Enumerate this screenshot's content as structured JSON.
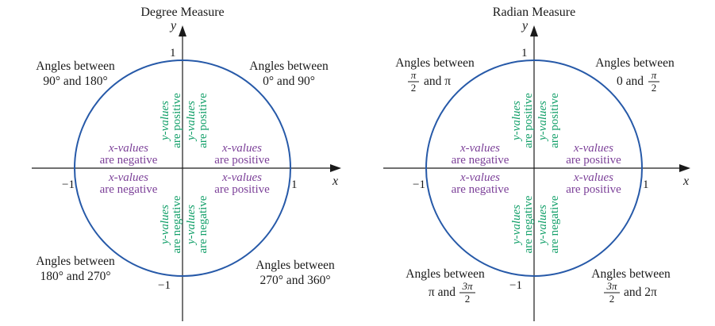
{
  "diagrams": [
    {
      "title": "Degree Measure",
      "axis_x": "x",
      "axis_y": "y",
      "ticks": {
        "pos_y": "1",
        "neg_y": "−1",
        "pos_x": "1",
        "neg_x": "−1"
      },
      "quadrants": {
        "q1": {
          "line1": "Angles between",
          "line2": "0° and 90°"
        },
        "q2": {
          "line1": "Angles between",
          "line2": "90° and 180°"
        },
        "q3": {
          "line1": "Angles between",
          "line2": "180° and 270°"
        },
        "q4": {
          "line1": "Angles between",
          "line2": "270° and 360°"
        }
      }
    },
    {
      "title": "Radian Measure",
      "axis_x": "x",
      "axis_y": "y",
      "ticks": {
        "pos_y": "1",
        "neg_y": "−1",
        "pos_x": "1",
        "neg_x": "−1"
      },
      "quadrants": {
        "q1": {
          "line1": "Angles between",
          "pre": "0 and",
          "num": "π",
          "den": "2",
          "post": ""
        },
        "q2": {
          "line1": "Angles between",
          "pre": "",
          "num": "π",
          "den": "2",
          "post": "and π"
        },
        "q3": {
          "line1": "Angles between",
          "pre": "π and",
          "num": "3π",
          "den": "2",
          "post": ""
        },
        "q4": {
          "line1": "Angles between",
          "pre": "",
          "num": "3π",
          "den": "2",
          "post": "and 2π"
        }
      }
    }
  ],
  "signs": {
    "x_neg_a": "x-values",
    "x_neg_b": "are negative",
    "x_pos_a": "x-values",
    "x_pos_b": "are positive",
    "y_pos_a": "y-values",
    "y_pos_b": "are positive",
    "y_neg_a": "y-values",
    "y_neg_b": "are negative"
  },
  "colors": {
    "circle": "#2659a8",
    "axes": "#1a1a1a",
    "x_sign_text": "#7b3f98",
    "y_sign_text": "#14a06a"
  }
}
